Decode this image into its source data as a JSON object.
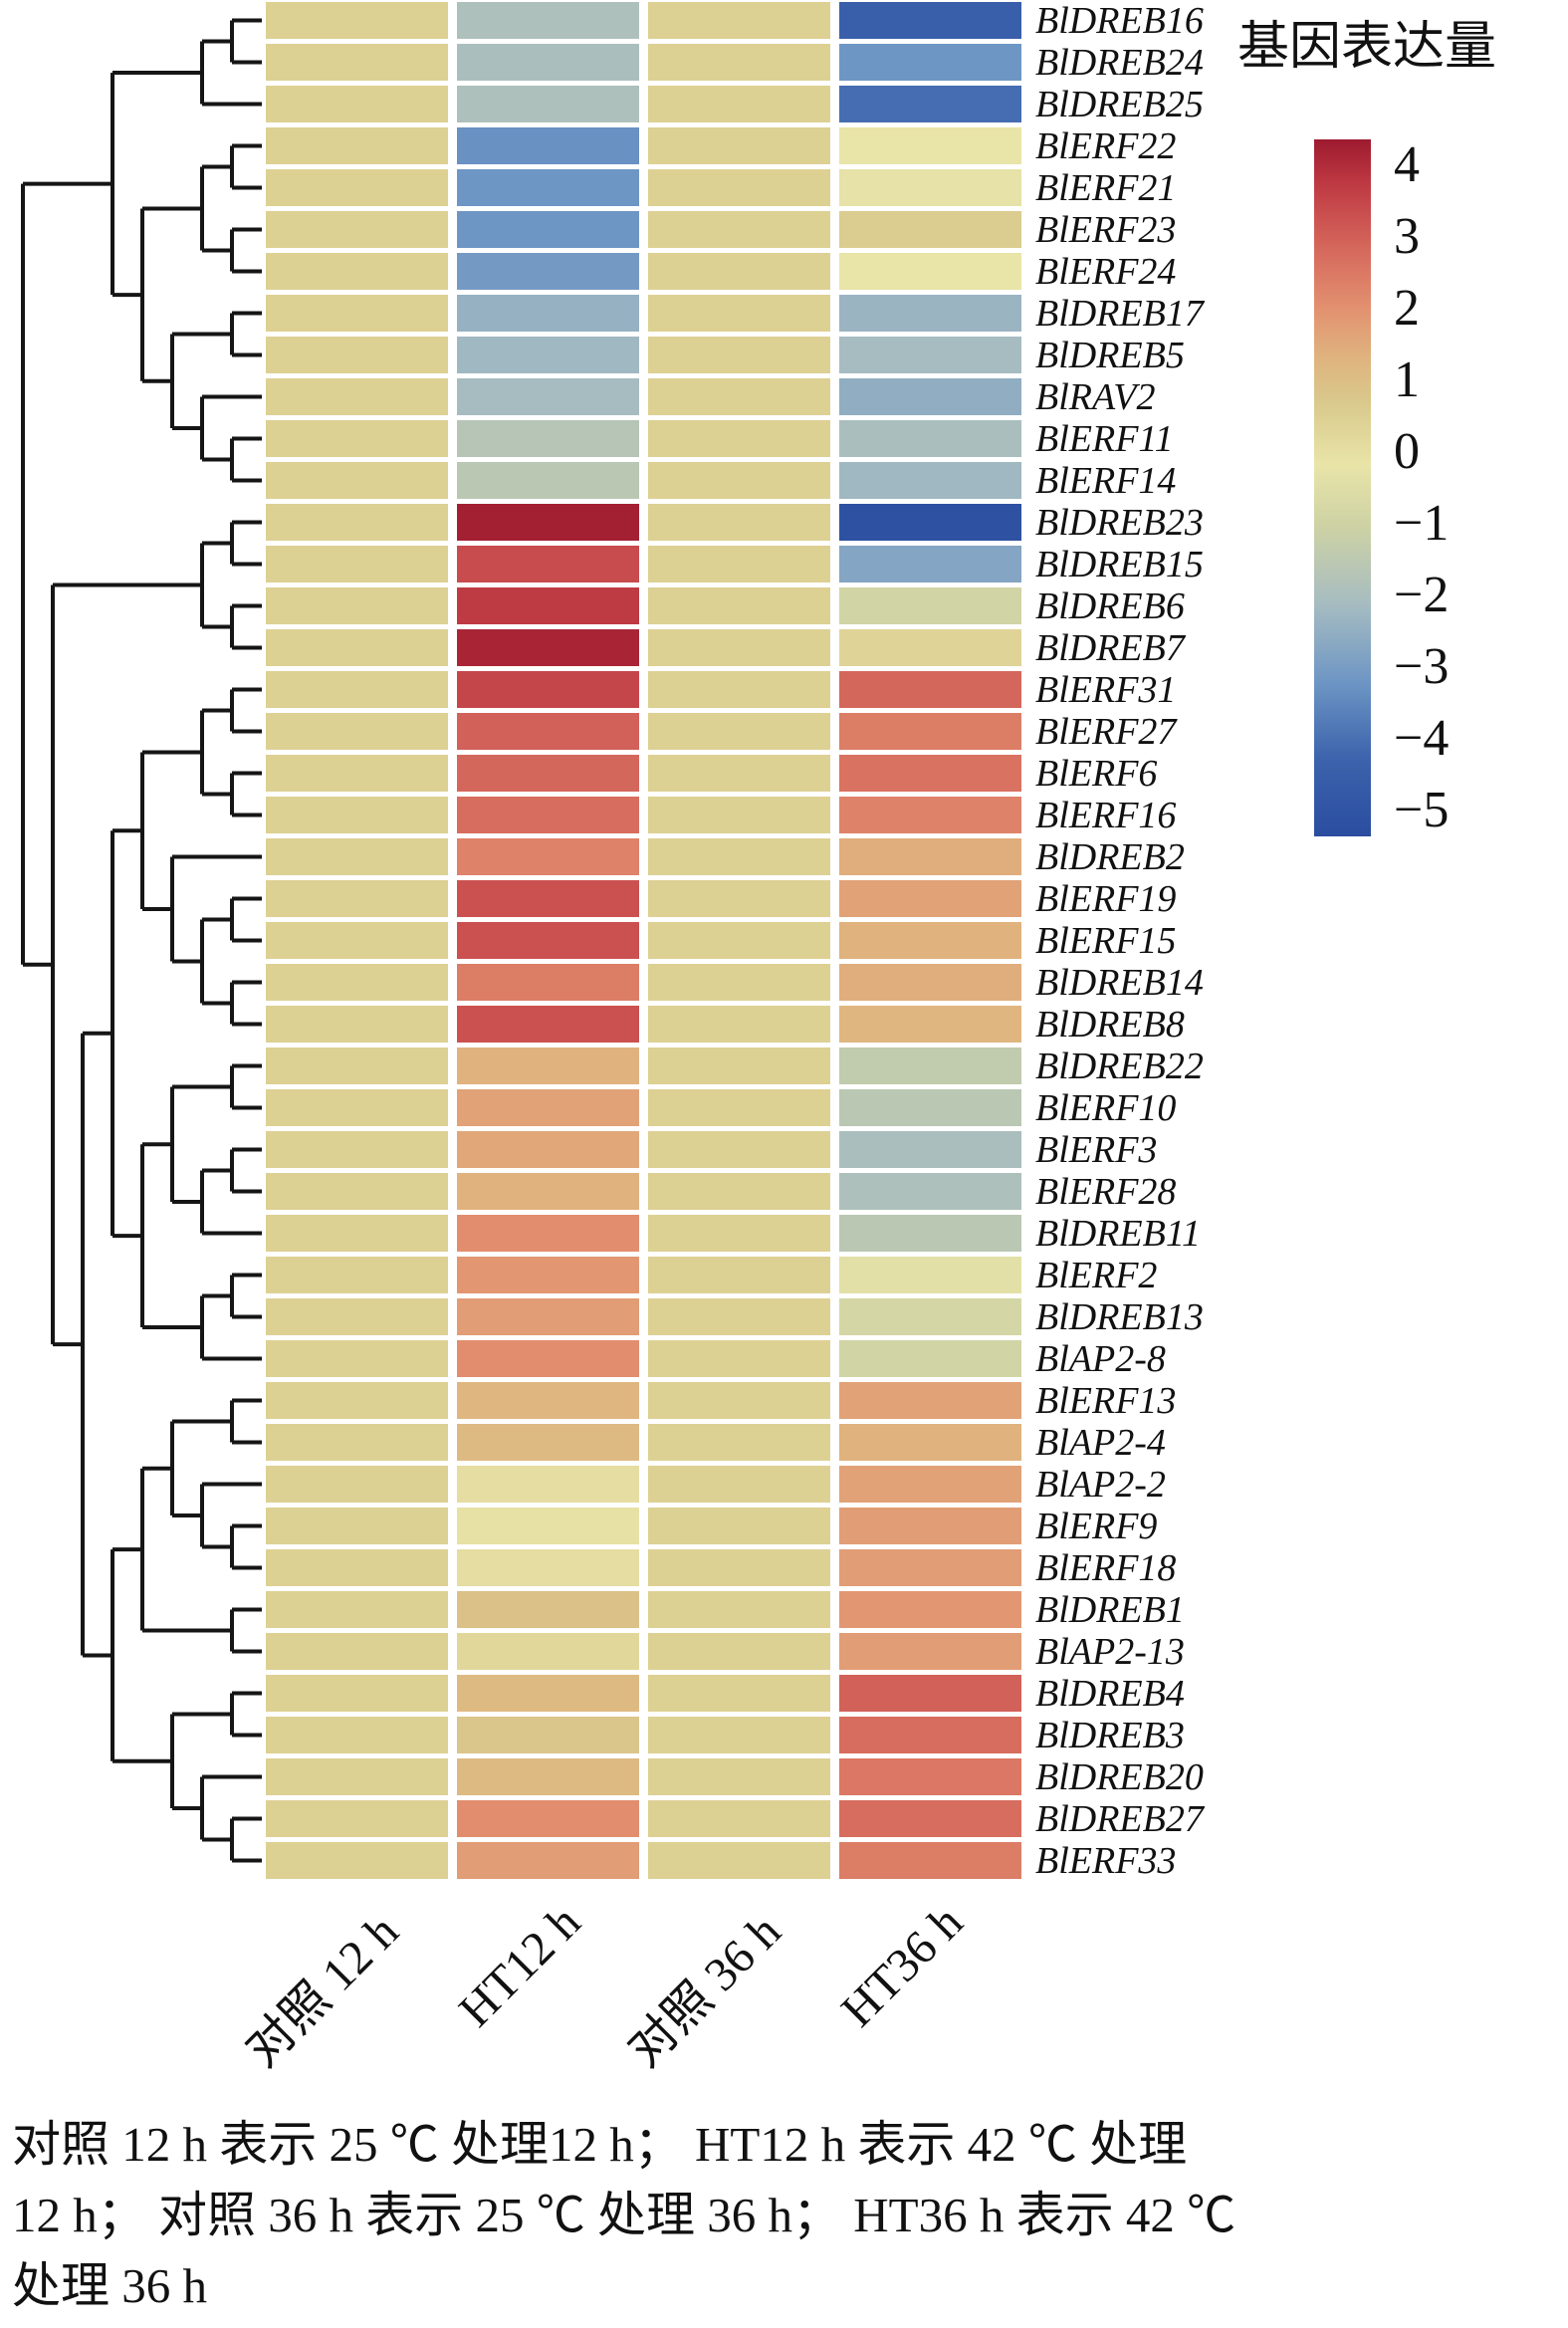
{
  "legend": {
    "title": "基因表达量",
    "ticks": [
      "4",
      "3",
      "2",
      "1",
      "0",
      "−1",
      "−2",
      "−3",
      "−4",
      "−5"
    ]
  },
  "caption": {
    "lines": [
      "对照 12 h 表示 25 ℃ 处理12 h；  HT12 h 表示 42 ℃ 处理",
      "12 h；  对照 36 h 表示 25 ℃ 处理 36 h；  HT36 h 表示 42 ℃",
      "处理 36 h"
    ]
  },
  "chart_data": {
    "type": "heatmap",
    "title": "基因表达量",
    "columns": [
      "对照 12 h",
      "HT12 h",
      "对照 36 h",
      "HT36 h"
    ],
    "genes": [
      "BlDREB16",
      "BlDREB24",
      "BlDREB25",
      "BlERF22",
      "BlERF21",
      "BlERF23",
      "BlERF24",
      "BlDREB17",
      "BlDREB5",
      "BlRAV2",
      "BlERF11",
      "BlERF14",
      "BlDREB23",
      "BlDREB15",
      "BlDREB6",
      "BlDREB7",
      "BlERF31",
      "BlERF27",
      "BlERF6",
      "BlERF16",
      "BlDREB2",
      "BlERF19",
      "BlERF15",
      "BlDREB14",
      "BlDREB8",
      "BlDREB22",
      "BlERF10",
      "BlERF3",
      "BlERF28",
      "BlDREB11",
      "BlERF2",
      "BlDREB13",
      "BlAP2-8",
      "BlERF13",
      "BlAP2-4",
      "BlAP2-2",
      "BlERF9",
      "BlERF18",
      "BlDREB1",
      "BlAP2-13",
      "BlDREB4",
      "BlDREB3",
      "BlDREB20",
      "BlDREB27",
      "BlERF33"
    ],
    "values": [
      [
        0.4,
        -1.8,
        0.4,
        -4.2
      ],
      [
        0.4,
        -1.9,
        0.4,
        -3.0
      ],
      [
        0.4,
        -1.8,
        0.4,
        -3.8
      ],
      [
        0.4,
        -3.1,
        0.4,
        -0.2
      ],
      [
        0.4,
        -3.0,
        0.4,
        -0.3
      ],
      [
        0.4,
        -3.0,
        0.4,
        0.5
      ],
      [
        0.4,
        -2.9,
        0.4,
        -0.2
      ],
      [
        0.4,
        -2.3,
        0.4,
        -2.2
      ],
      [
        0.4,
        -2.1,
        0.4,
        -2.0
      ],
      [
        0.4,
        -2.0,
        0.4,
        -2.4
      ],
      [
        0.4,
        -1.6,
        0.4,
        -1.9
      ],
      [
        0.4,
        -1.5,
        0.4,
        -2.1
      ],
      [
        0.4,
        3.9,
        0.4,
        -4.8
      ],
      [
        0.4,
        3.1,
        0.4,
        -2.6
      ],
      [
        0.4,
        3.4,
        0.4,
        -0.9
      ],
      [
        0.4,
        3.8,
        0.4,
        0.3
      ],
      [
        0.4,
        3.2,
        0.4,
        2.6
      ],
      [
        0.4,
        2.7,
        0.4,
        2.2
      ],
      [
        0.4,
        2.6,
        0.4,
        2.4
      ],
      [
        0.4,
        2.5,
        0.4,
        2.1
      ],
      [
        0.4,
        2.1,
        0.4,
        1.3
      ],
      [
        0.4,
        3.0,
        0.4,
        1.5
      ],
      [
        0.4,
        3.0,
        0.4,
        1.2
      ],
      [
        0.4,
        2.2,
        0.4,
        1.3
      ],
      [
        0.4,
        3.0,
        0.4,
        1.1
      ],
      [
        0.4,
        1.2,
        0.4,
        -1.3
      ],
      [
        0.4,
        1.5,
        0.4,
        -1.5
      ],
      [
        0.4,
        1.4,
        0.4,
        -1.9
      ],
      [
        0.4,
        1.2,
        0.4,
        -1.8
      ],
      [
        0.4,
        1.9,
        0.4,
        -1.5
      ],
      [
        0.4,
        1.7,
        0.4,
        -0.4
      ],
      [
        0.4,
        1.6,
        0.4,
        -0.8
      ],
      [
        0.4,
        1.9,
        0.4,
        -0.9
      ],
      [
        0.4,
        1.1,
        0.4,
        1.5
      ],
      [
        0.4,
        1.0,
        0.4,
        1.2
      ],
      [
        0.4,
        0.0,
        0.4,
        1.5
      ],
      [
        0.4,
        -0.1,
        0.4,
        1.6
      ],
      [
        0.4,
        0.0,
        0.4,
        1.6
      ],
      [
        0.4,
        0.8,
        0.4,
        1.7
      ],
      [
        0.4,
        0.2,
        0.4,
        1.6
      ],
      [
        0.4,
        1.0,
        0.4,
        2.7
      ],
      [
        0.4,
        0.7,
        0.4,
        2.5
      ],
      [
        0.4,
        1.0,
        0.4,
        2.3
      ],
      [
        0.4,
        1.9,
        0.4,
        2.5
      ],
      [
        0.4,
        1.6,
        0.4,
        2.2
      ]
    ],
    "vmin": -5,
    "vmax": 4,
    "legend_title": "基因表达量",
    "legend_ticks": [
      4,
      3,
      2,
      1,
      0,
      -1,
      -2,
      -3,
      -4,
      -5
    ],
    "colormap_stops": [
      [
        -5,
        "#2b4da0"
      ],
      [
        -4,
        "#3c63ac"
      ],
      [
        -3,
        "#6e96c4"
      ],
      [
        -2,
        "#a6bcc1"
      ],
      [
        -1,
        "#cdd2a4"
      ],
      [
        -0.2,
        "#e9e4a8"
      ],
      [
        0.6,
        "#d9c98c"
      ],
      [
        1.2,
        "#e0b27e"
      ],
      [
        1.8,
        "#e29270"
      ],
      [
        2.4,
        "#d97261"
      ],
      [
        3.0,
        "#cb5150"
      ],
      [
        3.5,
        "#bb3540"
      ],
      [
        4,
        "#9d1b30"
      ]
    ],
    "dendrogram_tree": [
      [
        [
          [
            0,
            1
          ],
          2
        ],
        [
          [
            [
              3,
              4
            ],
            [
              5,
              6
            ]
          ],
          [
            [
              7,
              8
            ],
            [
              9,
              [
                10,
                11
              ]
            ]
          ]
        ]
      ],
      [
        [
          [
            12,
            13
          ],
          [
            14,
            15
          ]
        ],
        [
          [
            [
              [
                [
                  16,
                  17
                ],
                [
                  18,
                  19
                ]
              ],
              [
                20,
                [
                  [
                    21,
                    22
                  ],
                  [
                    23,
                    24
                  ]
                ]
              ]
            ],
            [
              [
                [
                  25,
                  26
                ],
                [
                  [
                    27,
                    28
                  ],
                  29
                ]
              ],
              [
                [
                  30,
                  31
                ],
                32
              ]
            ]
          ],
          [
            [
              [
                [
                  33,
                  34
                ],
                [
                  35,
                  [
                    36,
                    37
                  ]
                ]
              ],
              [
                38,
                39
              ]
            ],
            [
              [
                40,
                41
              ],
              [
                42,
                [
                  43,
                  44
                ]
              ]
            ]
          ]
        ]
      ]
    ]
  }
}
